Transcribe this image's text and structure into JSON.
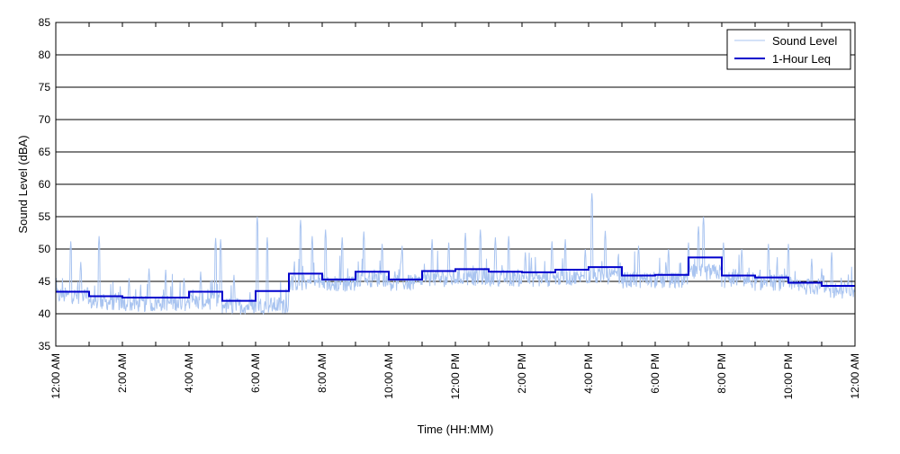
{
  "chart_data": {
    "type": "line",
    "title": "",
    "xlabel": "Time (HH:MM)",
    "ylabel": "Sound Level (dBA)",
    "ylim": [
      35,
      85
    ],
    "yticks": [
      35,
      40,
      45,
      50,
      55,
      60,
      65,
      70,
      75,
      80,
      85
    ],
    "xlim_hours": [
      0,
      24
    ],
    "xtick_labels": [
      "12:00 AM",
      "2:00 AM",
      "4:00 AM",
      "6:00 AM",
      "8:00 AM",
      "10:00 AM",
      "12:00 PM",
      "2:00 PM",
      "4:00 PM",
      "6:00 PM",
      "8:00 PM",
      "10:00 PM",
      "12:00 AM"
    ],
    "xtick_hours": [
      0,
      2,
      4,
      6,
      8,
      10,
      12,
      14,
      16,
      18,
      20,
      22,
      24
    ],
    "minor_xtick_hours": [
      1,
      3,
      5,
      7,
      9,
      11,
      13,
      15,
      17,
      19,
      21,
      23
    ],
    "grid": "horizontal",
    "legend_position": "top-right",
    "series": [
      {
        "name": "Sound Level",
        "color": "#a9c4f0",
        "style": "thin-line",
        "hourly_base": [
          42.8,
          41.8,
          41.5,
          41.7,
          41.9,
          41.2,
          41.3,
          44.8,
          44.6,
          45.4,
          44.8,
          45.4,
          45.6,
          45.5,
          45.4,
          45.6,
          45.8,
          45.2,
          45.1,
          46.4,
          45.2,
          44.8,
          44.2,
          43.6
        ],
        "peaks": [
          {
            "hour": 0.45,
            "value": 51.2
          },
          {
            "hour": 0.75,
            "value": 48.0
          },
          {
            "hour": 1.3,
            "value": 52.0
          },
          {
            "hour": 2.2,
            "value": 45.5
          },
          {
            "hour": 2.8,
            "value": 47.0
          },
          {
            "hour": 3.3,
            "value": 46.8
          },
          {
            "hour": 3.85,
            "value": 45.5
          },
          {
            "hour": 4.35,
            "value": 46.5
          },
          {
            "hour": 4.8,
            "value": 51.7
          },
          {
            "hour": 4.95,
            "value": 51.5
          },
          {
            "hour": 5.35,
            "value": 46.0
          },
          {
            "hour": 6.05,
            "value": 55.0
          },
          {
            "hour": 6.35,
            "value": 51.8
          },
          {
            "hour": 7.35,
            "value": 54.5
          },
          {
            "hour": 7.7,
            "value": 52.0
          },
          {
            "hour": 8.1,
            "value": 53.0
          },
          {
            "hour": 8.6,
            "value": 51.8
          },
          {
            "hour": 9.25,
            "value": 52.7
          },
          {
            "hour": 9.8,
            "value": 50.8
          },
          {
            "hour": 10.4,
            "value": 50.5
          },
          {
            "hour": 11.3,
            "value": 51.5
          },
          {
            "hour": 11.8,
            "value": 51.0
          },
          {
            "hour": 12.3,
            "value": 52.5
          },
          {
            "hour": 12.75,
            "value": 53.0
          },
          {
            "hour": 13.2,
            "value": 51.8
          },
          {
            "hour": 13.6,
            "value": 52.0
          },
          {
            "hour": 14.1,
            "value": 49.5
          },
          {
            "hour": 14.9,
            "value": 51.2
          },
          {
            "hour": 15.3,
            "value": 51.5
          },
          {
            "hour": 15.9,
            "value": 50.0
          },
          {
            "hour": 16.1,
            "value": 58.6
          },
          {
            "hour": 16.5,
            "value": 52.8
          },
          {
            "hour": 17.5,
            "value": 50.5
          },
          {
            "hour": 18.4,
            "value": 50.0
          },
          {
            "hour": 19.0,
            "value": 51.0
          },
          {
            "hour": 19.3,
            "value": 53.5
          },
          {
            "hour": 19.45,
            "value": 55.0
          },
          {
            "hour": 20.05,
            "value": 51.0
          },
          {
            "hour": 20.6,
            "value": 50.0
          },
          {
            "hour": 21.4,
            "value": 50.8
          },
          {
            "hour": 22.0,
            "value": 50.8
          },
          {
            "hour": 22.7,
            "value": 48.5
          },
          {
            "hour": 23.0,
            "value": 47.0
          },
          {
            "hour": 23.3,
            "value": 49.5
          },
          {
            "hour": 23.8,
            "value": 45.5
          }
        ]
      },
      {
        "name": "1-Hour Leq",
        "color": "#0000cc",
        "style": "step",
        "hourly_values": [
          43.4,
          42.7,
          42.5,
          42.5,
          43.4,
          42.0,
          43.5,
          46.2,
          45.3,
          46.5,
          45.3,
          46.6,
          46.9,
          46.5,
          46.4,
          46.8,
          47.2,
          45.9,
          46.0,
          48.7,
          45.9,
          45.6,
          44.8,
          44.3
        ]
      }
    ]
  }
}
